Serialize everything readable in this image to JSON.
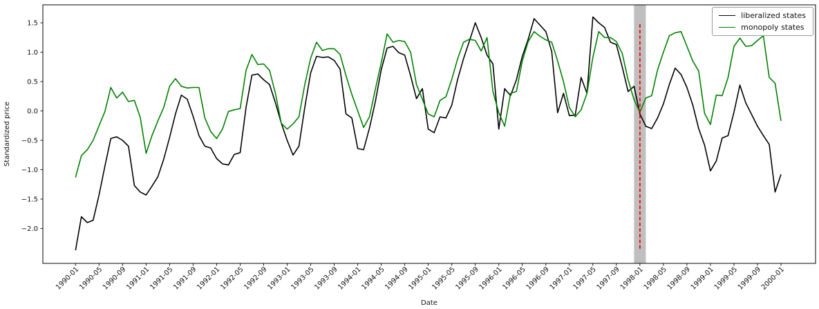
{
  "figure": {
    "background": "#ffffff",
    "xlabel": "Date",
    "ylabel": "Standardized price"
  },
  "legend": {
    "entries": [
      {
        "label": "liberalized states",
        "color": "#000000"
      },
      {
        "label": "monopoly states",
        "color": "#008000"
      }
    ]
  },
  "chart_data": {
    "type": "line",
    "title": "",
    "xlabel": "Date",
    "ylabel": "Standardized price",
    "x_start": "1990-01",
    "x_end": "2000-01",
    "x_interval": "1 month",
    "n_points": 121,
    "ylim": [
      -2.94,
      1.81
    ],
    "grid": false,
    "legend_position": "upper right",
    "xtick_labels": [
      "1990-01",
      "1990-05",
      "1990-09",
      "1991-01",
      "1991-05",
      "1991-09",
      "1992-01",
      "1992-05",
      "1992-09",
      "1993-01",
      "1993-05",
      "1993-09",
      "1994-01",
      "1994-05",
      "1994-09",
      "1995-01",
      "1995-05",
      "1995-09",
      "1996-01",
      "1996-05",
      "1996-09",
      "1997-01",
      "1997-05",
      "1997-09",
      "1998-01",
      "1998-05",
      "1998-09",
      "1999-01",
      "1999-05",
      "1999-09",
      "2000-01"
    ],
    "ytick_labels": [
      "1.5",
      "1.0",
      "0.5",
      "0.0",
      "−0.5",
      "−1.0",
      "−1.5",
      "−2.0"
    ],
    "ytick_values": [
      1.5,
      1.0,
      0.5,
      0.0,
      -0.5,
      -1.0,
      -1.5,
      -2.0
    ],
    "series": [
      {
        "name": "liberalized states",
        "color": "#000000",
        "values": [
          -2.37,
          -1.8,
          -1.9,
          -1.86,
          -1.43,
          -0.94,
          -0.47,
          -0.44,
          -0.5,
          -0.6,
          -1.27,
          -1.38,
          -1.43,
          -1.28,
          -1.12,
          -0.82,
          -0.45,
          -0.05,
          0.27,
          0.2,
          -0.09,
          -0.42,
          -0.6,
          -0.63,
          -0.81,
          -0.9,
          -0.92,
          -0.74,
          -0.71,
          0.06,
          0.61,
          0.63,
          0.53,
          0.45,
          0.14,
          -0.21,
          -0.5,
          -0.75,
          -0.6,
          0.06,
          0.65,
          0.93,
          0.91,
          0.92,
          0.86,
          0.71,
          -0.05,
          -0.12,
          -0.64,
          -0.66,
          -0.29,
          0.16,
          0.7,
          1.07,
          1.1,
          0.99,
          0.95,
          0.6,
          0.21,
          0.38,
          -0.31,
          -0.37,
          -0.1,
          -0.12,
          0.1,
          0.54,
          0.89,
          1.19,
          1.5,
          1.25,
          0.95,
          0.8,
          -0.31,
          0.38,
          0.26,
          0.53,
          0.93,
          1.22,
          1.57,
          1.46,
          1.35,
          1.01,
          -0.03,
          0.3,
          -0.08,
          -0.07,
          0.57,
          0.3,
          1.6,
          1.5,
          1.42,
          1.17,
          1.13,
          0.75,
          0.33,
          0.42,
          -0.05,
          -0.26,
          -0.3,
          -0.12,
          0.12,
          0.45,
          0.73,
          0.62,
          0.4,
          0.1,
          -0.3,
          -0.58,
          -1.02,
          -0.85,
          -0.46,
          -0.42,
          -0.02,
          0.44,
          0.14,
          -0.06,
          -0.26,
          -0.42,
          -0.57,
          -1.38,
          -1.08
        ]
      },
      {
        "name": "monopoly states",
        "color": "#008000",
        "values": [
          -1.13,
          -0.76,
          -0.66,
          -0.5,
          -0.25,
          -0.01,
          0.4,
          0.22,
          0.32,
          0.16,
          0.18,
          -0.11,
          -0.72,
          -0.42,
          -0.17,
          0.06,
          0.42,
          0.55,
          0.42,
          0.39,
          0.4,
          0.4,
          -0.12,
          -0.35,
          -0.47,
          -0.31,
          -0.01,
          0.02,
          0.04,
          0.69,
          0.96,
          0.79,
          0.8,
          0.69,
          0.3,
          -0.21,
          -0.31,
          -0.22,
          -0.1,
          0.45,
          0.9,
          1.17,
          1.03,
          1.06,
          1.06,
          0.96,
          0.6,
          0.28,
          0.0,
          -0.28,
          -0.1,
          0.37,
          0.82,
          1.31,
          1.17,
          1.2,
          1.18,
          1.0,
          0.45,
          0.2,
          -0.05,
          -0.1,
          0.18,
          0.24,
          0.54,
          0.89,
          1.17,
          1.22,
          1.2,
          1.02,
          1.25,
          0.33,
          -0.03,
          -0.26,
          0.3,
          0.33,
          0.85,
          1.18,
          1.35,
          1.27,
          1.21,
          1.17,
          0.85,
          0.5,
          0.06,
          -0.1,
          0.02,
          0.3,
          0.91,
          1.35,
          1.25,
          1.25,
          1.18,
          0.98,
          0.53,
          0.19,
          -0.02,
          0.22,
          0.26,
          0.7,
          1.0,
          1.28,
          1.33,
          1.35,
          1.1,
          0.85,
          0.68,
          -0.04,
          -0.23,
          0.27,
          0.26,
          0.57,
          1.1,
          1.24,
          1.1,
          1.11,
          1.2,
          1.28,
          0.57,
          0.47,
          -0.17
        ]
      }
    ],
    "annotations": {
      "band": {
        "from": "1997-12",
        "to": "1998-02",
        "color": "#7f7f7f",
        "alpha": 0.5
      },
      "vline": {
        "x": "1998-01",
        "color": "#ff0000",
        "style": "dashed"
      }
    }
  }
}
